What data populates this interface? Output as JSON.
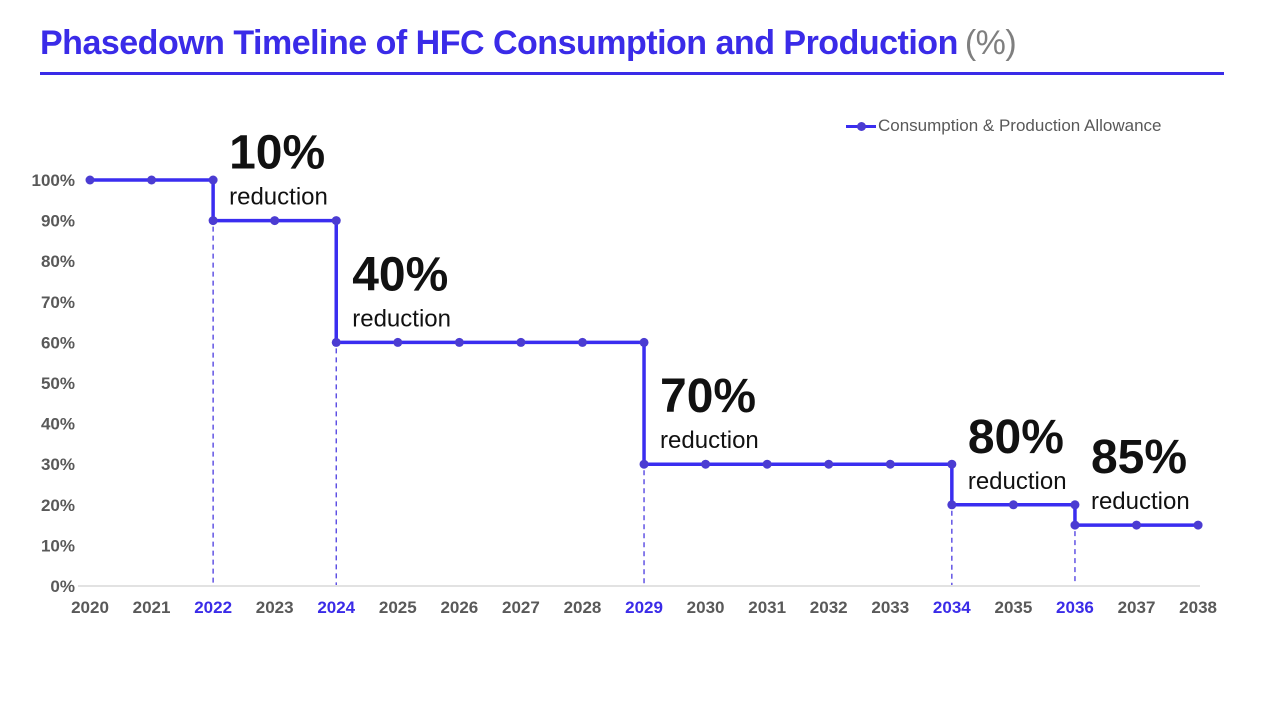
{
  "header": {
    "title": "Phasedown Timeline of HFC Consumption and Production",
    "title_suffix": "(%)"
  },
  "legend": {
    "label": "Consumption & Production Allowance"
  },
  "colors": {
    "accent_blue": "#3a2be8",
    "line_blue": "#3a2df0",
    "marker_blue": "#4b3cd2",
    "dashed_blue": "#4a3ae0",
    "axis_gray": "#d9d9d9",
    "label_gray": "#595959",
    "annotation_black": "#111111"
  },
  "chart_data": {
    "type": "line",
    "step": true,
    "title": "Phasedown Timeline of HFC Consumption and Production (%)",
    "xlabel": "",
    "ylabel": "",
    "x": [
      2020,
      2021,
      2022,
      2023,
      2024,
      2025,
      2026,
      2027,
      2028,
      2029,
      2030,
      2031,
      2032,
      2033,
      2034,
      2035,
      2036,
      2037,
      2038
    ],
    "series": [
      {
        "name": "Consumption & Production Allowance",
        "values": [
          100,
          100,
          90,
          90,
          60,
          60,
          60,
          60,
          60,
          30,
          30,
          30,
          30,
          30,
          20,
          20,
          15,
          15,
          15
        ]
      }
    ],
    "ylim": [
      0,
      100
    ],
    "y_ticks": [
      "0%",
      "10%",
      "20%",
      "30%",
      "40%",
      "50%",
      "60%",
      "70%",
      "80%",
      "90%",
      "100%"
    ],
    "grid": false,
    "legend_position": "top-right",
    "highlight_years": [
      2022,
      2024,
      2029,
      2034,
      2036
    ],
    "annotations": [
      {
        "year": 2022,
        "level": 90,
        "big": "10%",
        "small": "reduction"
      },
      {
        "year": 2024,
        "level": 60,
        "big": "40%",
        "small": "reduction"
      },
      {
        "year": 2029,
        "level": 30,
        "big": "70%",
        "small": "reduction"
      },
      {
        "year": 2034,
        "level": 20,
        "big": "80%",
        "small": "reduction"
      },
      {
        "year": 2036,
        "level": 15,
        "big": "85%",
        "small": "reduction"
      }
    ]
  }
}
